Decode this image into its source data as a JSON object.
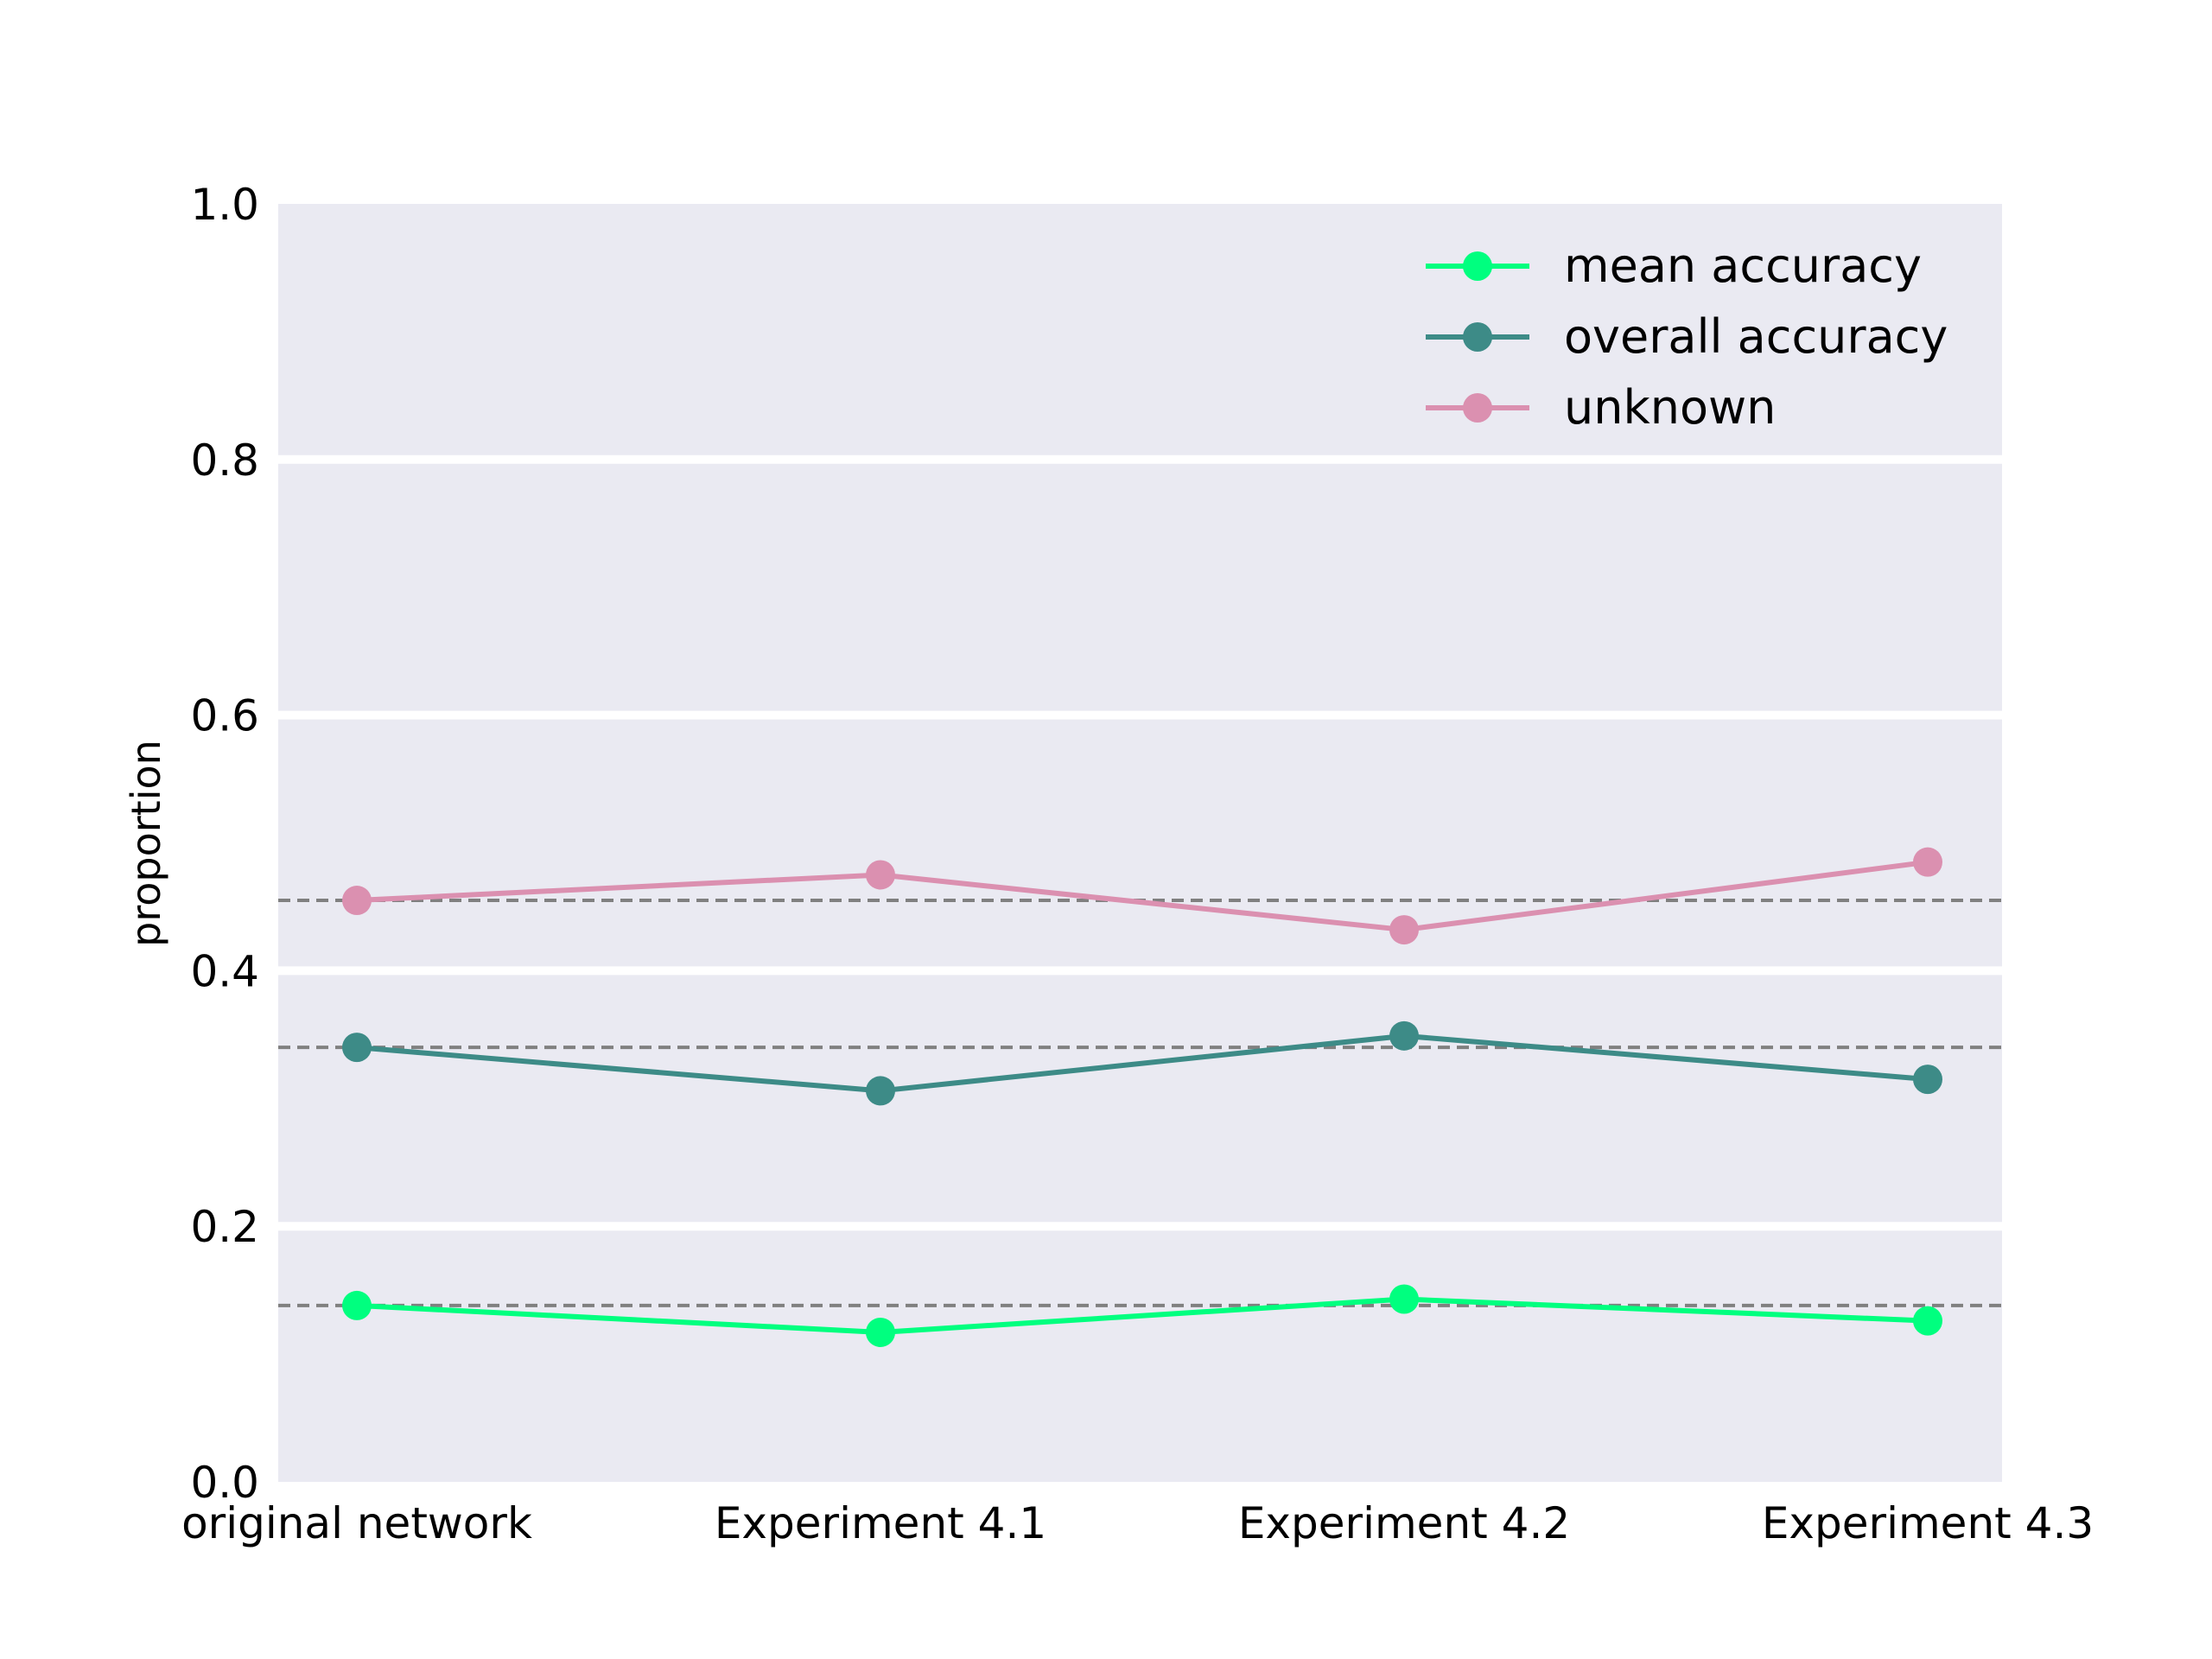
{
  "chart_data": {
    "type": "line",
    "title": "",
    "xlabel": "",
    "ylabel": "proportion",
    "categories": [
      "original network",
      "Experiment 4.1",
      "Experiment 4.2",
      "Experiment 4.3"
    ],
    "ylim": [
      0.0,
      1.0
    ],
    "yticks": [
      "0.0",
      "0.2",
      "0.4",
      "0.6",
      "0.8",
      "1.0"
    ],
    "grid": "horizontal",
    "legend_position": "top-right",
    "background_color": "#EAEAF2",
    "series": [
      {
        "name": "mean accuracy",
        "color": "#00FF7F",
        "values": [
          0.138,
          0.117,
          0.143,
          0.126
        ],
        "baseline": 0.138
      },
      {
        "name": "overall accuracy",
        "color": "#3D8B87",
        "values": [
          0.34,
          0.306,
          0.349,
          0.315
        ],
        "baseline": 0.34
      },
      {
        "name": "unknown",
        "color": "#DB90B0",
        "values": [
          0.455,
          0.475,
          0.432,
          0.485
        ],
        "baseline": 0.455
      }
    ]
  }
}
